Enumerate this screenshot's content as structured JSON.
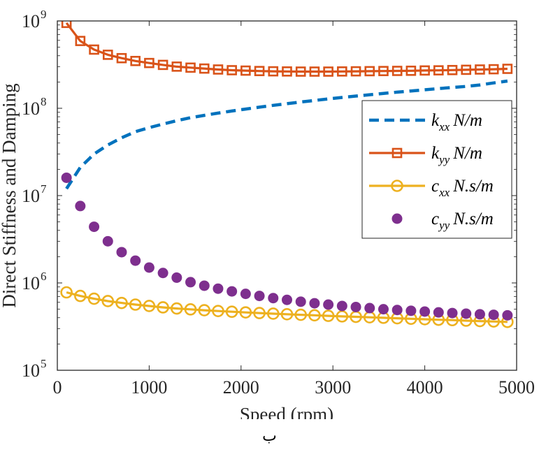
{
  "chart_data": {
    "type": "line",
    "xlabel": "Speed (rpm)",
    "ylabel": "Direct Stiffness and Damping",
    "xlim": [
      0,
      5000
    ],
    "ylim": [
      100000,
      1000000000
    ],
    "yscale": "log",
    "x_ticks": [
      "0",
      "1000",
      "2000",
      "3000",
      "4000",
      "5000"
    ],
    "y_ticks": [
      {
        "base": "10",
        "exp": "5"
      },
      {
        "base": "10",
        "exp": "6"
      },
      {
        "base": "10",
        "exp": "7"
      },
      {
        "base": "10",
        "exp": "8"
      },
      {
        "base": "10",
        "exp": "9"
      }
    ],
    "legend_position": "right",
    "x": [
      100,
      250,
      400,
      550,
      700,
      850,
      1000,
      1150,
      1300,
      1450,
      1600,
      1750,
      1900,
      2050,
      2200,
      2350,
      2500,
      2650,
      2800,
      2950,
      3100,
      3250,
      3400,
      3550,
      3700,
      3850,
      4000,
      4150,
      4300,
      4450,
      4600,
      4750,
      4900
    ],
    "series": [
      {
        "name": "k_xx N/m",
        "label_main": "k",
        "label_sub": "xx",
        "label_unit": "N/m",
        "color": "#0072BD",
        "style": "dashed",
        "marker": "none",
        "values": [
          12000000,
          21000000,
          30000000,
          38000000,
          46000000,
          54000000,
          60000000,
          66000000,
          72000000,
          78000000,
          83000000,
          88000000,
          93000000,
          98000000,
          103000000,
          108000000,
          113000000,
          118000000,
          123000000,
          128000000,
          133000000,
          138000000,
          143000000,
          148000000,
          153000000,
          158000000,
          163000000,
          168000000,
          173000000,
          178000000,
          185000000,
          195000000,
          205000000
        ]
      },
      {
        "name": "k_yy N/m",
        "label_main": "k",
        "label_sub": "yy",
        "label_unit": "N/m",
        "color": "#D95319",
        "style": "solid",
        "marker": "square",
        "values": [
          950000000,
          590000000,
          470000000,
          410000000,
          375000000,
          348000000,
          330000000,
          314000000,
          300000000,
          292000000,
          285000000,
          278000000,
          273000000,
          270000000,
          267000000,
          265000000,
          264000000,
          263000000,
          263000000,
          263000000,
          264000000,
          265000000,
          266000000,
          267000000,
          268000000,
          269000000,
          271000000,
          272000000,
          274000000,
          276000000,
          278000000,
          280000000,
          283000000
        ]
      },
      {
        "name": "c_xx N.s/m",
        "label_main": "c",
        "label_sub": "xx",
        "label_unit": "N.s/m",
        "color": "#EDB120",
        "style": "solid",
        "marker": "circle",
        "values": [
          780000,
          710000,
          660000,
          620000,
          590000,
          565000,
          545000,
          525000,
          510000,
          498000,
          487000,
          477000,
          468000,
          460000,
          452000,
          445000,
          438000,
          432000,
          426000,
          420000,
          414000,
          409000,
          404000,
          399000,
          394000,
          389000,
          384000,
          379000,
          375000,
          370000,
          366000,
          362000,
          358000
        ]
      },
      {
        "name": "c_yy N.s/m",
        "label_main": "c",
        "label_sub": "yy",
        "label_unit": "N.s/m",
        "color": "#7E2F8E",
        "style": "none",
        "marker": "dot",
        "values": [
          16000000,
          7600000,
          4400000,
          3000000,
          2250000,
          1800000,
          1500000,
          1300000,
          1150000,
          1020000,
          930000,
          860000,
          800000,
          750000,
          710000,
          670000,
          640000,
          610000,
          585000,
          565000,
          545000,
          530000,
          515000,
          500000,
          490000,
          480000,
          470000,
          460000,
          452000,
          445000,
          438000,
          432000,
          426000
        ]
      }
    ]
  },
  "caption": "ب"
}
